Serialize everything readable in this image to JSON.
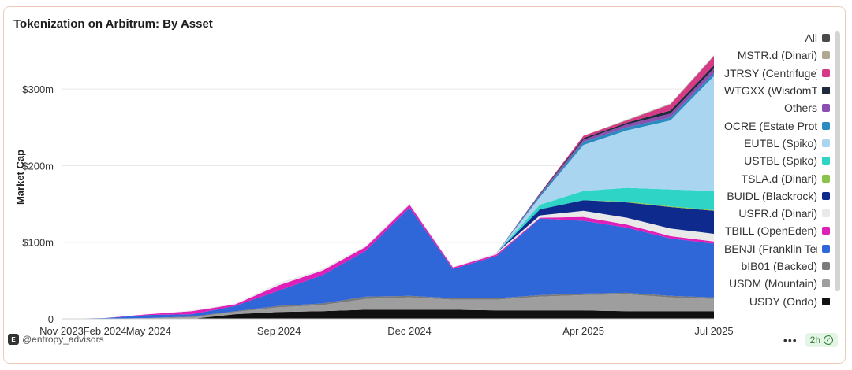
{
  "chart_data": {
    "type": "area",
    "stacked": true,
    "title": "Tokenization on Arbitrum: By Asset",
    "ylabel": "Market Cap",
    "xlabel": "",
    "ylim": [
      0,
      370
    ],
    "y_ticks": [
      {
        "value": 0,
        "label": "0"
      },
      {
        "value": 100,
        "label": "$100m"
      },
      {
        "value": 200,
        "label": "$200m"
      },
      {
        "value": 300,
        "label": "$300m"
      }
    ],
    "x": [
      "2023-11",
      "2024-02",
      "2024-05",
      "2024-07",
      "2024-08",
      "2024-09",
      "2024-10",
      "2024-11",
      "2024-12",
      "2025-01",
      "2025-02",
      "2025-03",
      "2025-04",
      "2025-05",
      "2025-06",
      "2025-07"
    ],
    "x_ticks": [
      "Nov 2023",
      "Feb 2024",
      "May 2024",
      "Sep 2024",
      "Dec 2024",
      "Apr 2025",
      "Jul 2025"
    ],
    "x_tick_index": [
      0,
      1,
      2,
      5,
      8,
      12,
      15
    ],
    "series": [
      {
        "name": "USDY (Ondo)",
        "color": "#111111",
        "values": [
          0,
          0,
          0,
          0,
          6,
          9,
          10,
          12,
          12,
          12,
          11,
          11,
          11,
          10,
          10,
          10
        ]
      },
      {
        "name": "USDM (Mountain)",
        "color": "#9e9e9e",
        "values": [
          0,
          0,
          1,
          2,
          3,
          6,
          8,
          14,
          16,
          13,
          14,
          18,
          20,
          22,
          18,
          16
        ]
      },
      {
        "name": "bIB01 (Backed)",
        "color": "#7a7a7a",
        "values": [
          0,
          0,
          0,
          1,
          1,
          2,
          2,
          3,
          2,
          2,
          2,
          2,
          2,
          2,
          2,
          2
        ]
      },
      {
        "name": "BENJI (Franklin Templeton)",
        "color": "#2f66d8",
        "values": [
          0,
          1,
          4,
          3,
          7,
          20,
          37,
          60,
          115,
          38,
          55,
          100,
          95,
          85,
          75,
          70
        ]
      },
      {
        "name": "TBILL (OpenEden)",
        "color": "#e01fb8",
        "values": [
          0,
          0,
          1,
          4,
          2,
          7,
          6,
          5,
          4,
          2,
          2,
          1,
          5,
          4,
          3,
          3
        ]
      },
      {
        "name": "USFR.d (Dinari)",
        "color": "#e9e9e9",
        "values": [
          0,
          0,
          0,
          1,
          1,
          3,
          2,
          2,
          2,
          1,
          2,
          3,
          8,
          9,
          10,
          10
        ]
      },
      {
        "name": "BUIDL (Blackrock)",
        "color": "#0d2a8c",
        "values": [
          0,
          0,
          0,
          0,
          0,
          0,
          0,
          0,
          0,
          0,
          0,
          8,
          14,
          20,
          28,
          30
        ]
      },
      {
        "name": "TSLA.d (Dinari)",
        "color": "#8bc34a",
        "values": [
          0,
          0,
          0,
          0,
          0,
          0,
          0,
          0,
          0,
          0,
          0,
          0,
          0,
          1,
          1,
          1
        ]
      },
      {
        "name": "USTBL (Spiko)",
        "color": "#2ed4c6",
        "values": [
          0,
          0,
          0,
          0,
          0,
          0,
          0,
          0,
          0,
          0,
          0,
          6,
          12,
          18,
          22,
          25
        ]
      },
      {
        "name": "EUTBL (Spiko)",
        "color": "#a9d5f0",
        "values": [
          0,
          0,
          0,
          0,
          0,
          0,
          0,
          0,
          0,
          0,
          0,
          10,
          60,
          75,
          90,
          150
        ]
      },
      {
        "name": "OCRE (Estate Protocol)",
        "color": "#2a8bc0",
        "values": [
          0,
          0,
          0,
          0,
          0,
          0,
          0,
          0,
          0,
          0,
          0,
          2,
          4,
          4,
          4,
          4
        ]
      },
      {
        "name": "Others",
        "color": "#8a4fb0",
        "values": [
          0,
          0,
          0,
          0,
          0,
          0,
          0,
          0,
          0,
          0,
          0,
          2,
          3,
          4,
          5,
          6
        ]
      },
      {
        "name": "WTGXX (WisdomTree)",
        "color": "#1d2a3a",
        "values": [
          0,
          0,
          0,
          0,
          0,
          0,
          0,
          0,
          0,
          0,
          0,
          1,
          2,
          2,
          4,
          4
        ]
      },
      {
        "name": "JTRSY (Centrifuge)",
        "color": "#d63a86",
        "values": [
          0,
          0,
          0,
          0,
          0,
          0,
          0,
          0,
          0,
          0,
          0,
          0,
          3,
          3,
          8,
          12
        ]
      },
      {
        "name": "MSTR.d (Dinari)",
        "color": "#b0a890",
        "values": [
          0,
          0,
          0,
          0,
          0,
          0,
          0,
          0,
          0,
          0,
          0,
          0,
          0,
          1,
          1,
          1
        ]
      }
    ],
    "legend": {
      "placement": "right",
      "items": [
        {
          "label": "All",
          "color": "#4a4a4a"
        },
        {
          "label": "MSTR.d (Dinari)",
          "color": "#b0a890"
        },
        {
          "label": "JTRSY (Centrifuge)",
          "color": "#d63a86"
        },
        {
          "label": "WTGXX (WisdomTree)",
          "color": "#1d2a3a"
        },
        {
          "label": "Others",
          "color": "#8a4fb0"
        },
        {
          "label": "OCRE (Estate Protocol)",
          "color": "#2a8bc0"
        },
        {
          "label": "EUTBL (Spiko)",
          "color": "#a9d5f0"
        },
        {
          "label": "USTBL (Spiko)",
          "color": "#2ed4c6"
        },
        {
          "label": "TSLA.d (Dinari)",
          "color": "#8bc34a"
        },
        {
          "label": "BUIDL (Blackrock)",
          "color": "#0d2a8c"
        },
        {
          "label": "USFR.d (Dinari)",
          "color": "#e9e9e9"
        },
        {
          "label": "TBILL (OpenEden)",
          "color": "#e01fb8"
        },
        {
          "label": "BENJI (Franklin Templeton)",
          "color": "#2f66d8"
        },
        {
          "label": "bIB01 (Backed)",
          "color": "#7a7a7a"
        },
        {
          "label": "USDM (Mountain)",
          "color": "#9e9e9e"
        },
        {
          "label": "USDY (Ondo)",
          "color": "#111111"
        }
      ]
    },
    "grid": true
  },
  "footer": {
    "brand": "@entropy_advisors",
    "brand_icon": "entropy-logo-icon",
    "more_label": "•••",
    "refresh_label": "2h"
  }
}
